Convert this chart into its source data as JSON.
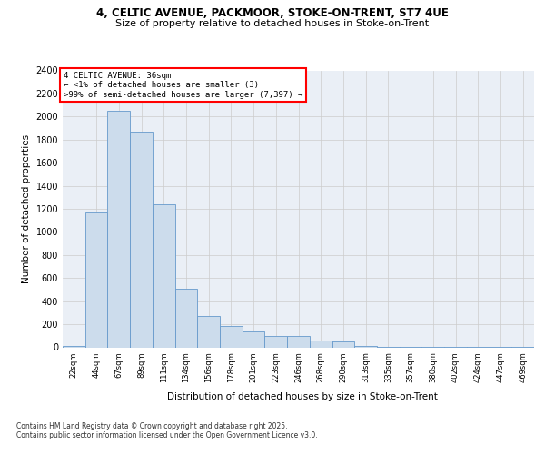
{
  "title_line1": "4, CELTIC AVENUE, PACKMOOR, STOKE-ON-TRENT, ST7 4UE",
  "title_line2": "Size of property relative to detached houses in Stoke-on-Trent",
  "xlabel": "Distribution of detached houses by size in Stoke-on-Trent",
  "ylabel": "Number of detached properties",
  "bar_color": "#ccdcec",
  "bar_edge_color": "#6699cc",
  "bg_color": "#eaeff6",
  "annotation_text": "4 CELTIC AVENUE: 36sqm\n← <1% of detached houses are smaller (3)\n>99% of semi-detached houses are larger (7,397) →",
  "footnote1": "Contains HM Land Registry data © Crown copyright and database right 2025.",
  "footnote2": "Contains public sector information licensed under the Open Government Licence v3.0.",
  "categories": [
    "22sqm",
    "44sqm",
    "67sqm",
    "89sqm",
    "111sqm",
    "134sqm",
    "156sqm",
    "178sqm",
    "201sqm",
    "223sqm",
    "246sqm",
    "268sqm",
    "290sqm",
    "313sqm",
    "335sqm",
    "357sqm",
    "380sqm",
    "402sqm",
    "424sqm",
    "447sqm",
    "469sqm"
  ],
  "values": [
    10,
    1170,
    2050,
    1870,
    1240,
    510,
    270,
    185,
    140,
    95,
    100,
    60,
    50,
    15,
    5,
    5,
    2,
    1,
    1,
    1,
    1
  ],
  "ylim": [
    0,
    2400
  ],
  "yticks": [
    0,
    200,
    400,
    600,
    800,
    1000,
    1200,
    1400,
    1600,
    1800,
    2000,
    2200,
    2400
  ],
  "grid_color": "#cccccc",
  "title_fontsize": 8.5,
  "subtitle_fontsize": 8,
  "ylabel_fontsize": 7.5,
  "xlabel_fontsize": 7.5,
  "tick_fontsize": 7,
  "xtick_fontsize": 6
}
